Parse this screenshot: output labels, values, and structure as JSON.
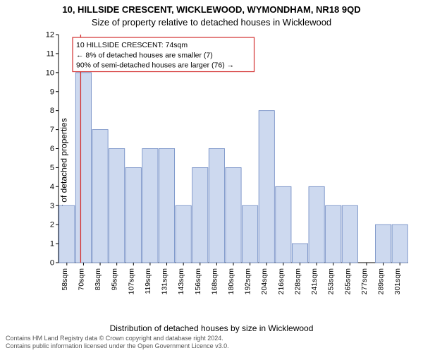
{
  "titles": {
    "line1": "10, HILLSIDE CRESCENT, WICKLEWOOD, WYMONDHAM, NR18 9QD",
    "line2": "Size of property relative to detached houses in Wicklewood"
  },
  "axes": {
    "ylabel": "Number of detached properties",
    "xlabel": "Distribution of detached houses by size in Wicklewood",
    "ylim": [
      0,
      12
    ],
    "ytick_step": 1,
    "x_categories": [
      "58sqm",
      "70sqm",
      "83sqm",
      "95sqm",
      "107sqm",
      "119sqm",
      "131sqm",
      "143sqm",
      "156sqm",
      "168sqm",
      "180sqm",
      "192sqm",
      "204sqm",
      "216sqm",
      "228sqm",
      "241sqm",
      "253sqm",
      "265sqm",
      "277sqm",
      "289sqm",
      "301sqm"
    ],
    "label_fontsize": 12,
    "tick_fontsize": 10.5
  },
  "bars": {
    "values": [
      3,
      10,
      7,
      6,
      5,
      6,
      6,
      3,
      5,
      6,
      5,
      3,
      8,
      4,
      1,
      4,
      3,
      3,
      0,
      2,
      2
    ],
    "fill_color": "#cdd9ef",
    "stroke_color": "#6b87c1",
    "bar_width_ratio": 0.94
  },
  "marker": {
    "index": 1,
    "offset_ratio": 0.33,
    "color": "#d32f2f"
  },
  "annotation": {
    "lines": [
      "10 HILLSIDE CRESCENT: 74sqm",
      "← 8% of detached houses are smaller (7)",
      "90% of semi-detached houses are larger (76) →"
    ],
    "border_color": "#d32f2f",
    "background_color": "#ffffff",
    "fontsize": 10.5
  },
  "footer": {
    "line1": "Contains HM Land Registry data © Crown copyright and database right 2024.",
    "line2": "Contains public information licensed under the Open Government Licence v3.0."
  },
  "colors": {
    "background": "#ffffff",
    "axis": "#000000",
    "text": "#000000",
    "footer_text": "#555555"
  }
}
